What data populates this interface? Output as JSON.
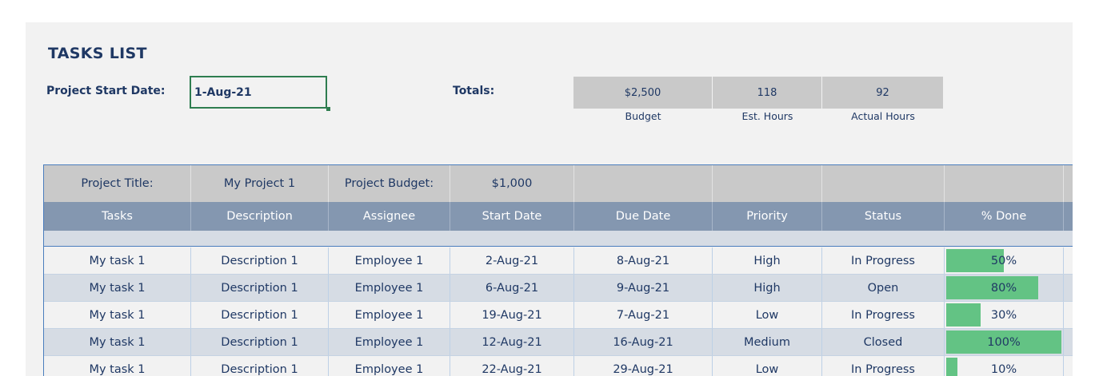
{
  "header": {
    "title": "TASKS LIST",
    "start_label": "Project Start Date:",
    "start_value": "1-Aug-21",
    "totals_label": "Totals:",
    "totals": [
      {
        "value": "$2,500",
        "label": "Budget"
      },
      {
        "value": "118",
        "label": "Est. Hours"
      },
      {
        "value": "92",
        "label": "Actual Hours"
      }
    ]
  },
  "project": {
    "title_label": "Project Title:",
    "title_value": "My Project 1",
    "budget_label": "Project Budget:",
    "budget_value": "$1,000"
  },
  "columns": [
    "Tasks",
    "Description",
    "Assignee",
    "Start Date",
    "Due Date",
    "Priority",
    "Status",
    "% Done"
  ],
  "rows": [
    {
      "task": "My task 1",
      "desc": "Description 1",
      "assignee": "Employee 1",
      "start": "2-Aug-21",
      "due": "8-Aug-21",
      "priority": "High",
      "status": "In Progress",
      "done": "50%",
      "done_fraction": 0.5
    },
    {
      "task": "My task 1",
      "desc": "Description 1",
      "assignee": "Employee 1",
      "start": "6-Aug-21",
      "due": "9-Aug-21",
      "priority": "High",
      "status": "Open",
      "done": "80%",
      "done_fraction": 0.8
    },
    {
      "task": "My task 1",
      "desc": "Description 1",
      "assignee": "Employee 1",
      "start": "19-Aug-21",
      "due": "7-Aug-21",
      "priority": "Low",
      "status": "In Progress",
      "done": "30%",
      "done_fraction": 0.3
    },
    {
      "task": "My task 1",
      "desc": "Description 1",
      "assignee": "Employee 1",
      "start": "12-Aug-21",
      "due": "16-Aug-21",
      "priority": "Medium",
      "status": "Closed",
      "done": "100%",
      "done_fraction": 1.0
    },
    {
      "task": "My task 1",
      "desc": "Description 1",
      "assignee": "Employee 1",
      "start": "22-Aug-21",
      "due": "29-Aug-21",
      "priority": "Low",
      "status": "In Progress",
      "done": "10%",
      "done_fraction": 0.1
    }
  ],
  "colors": {
    "bar": "#63c384",
    "header": "#8497b0",
    "text": "#1f3864"
  }
}
